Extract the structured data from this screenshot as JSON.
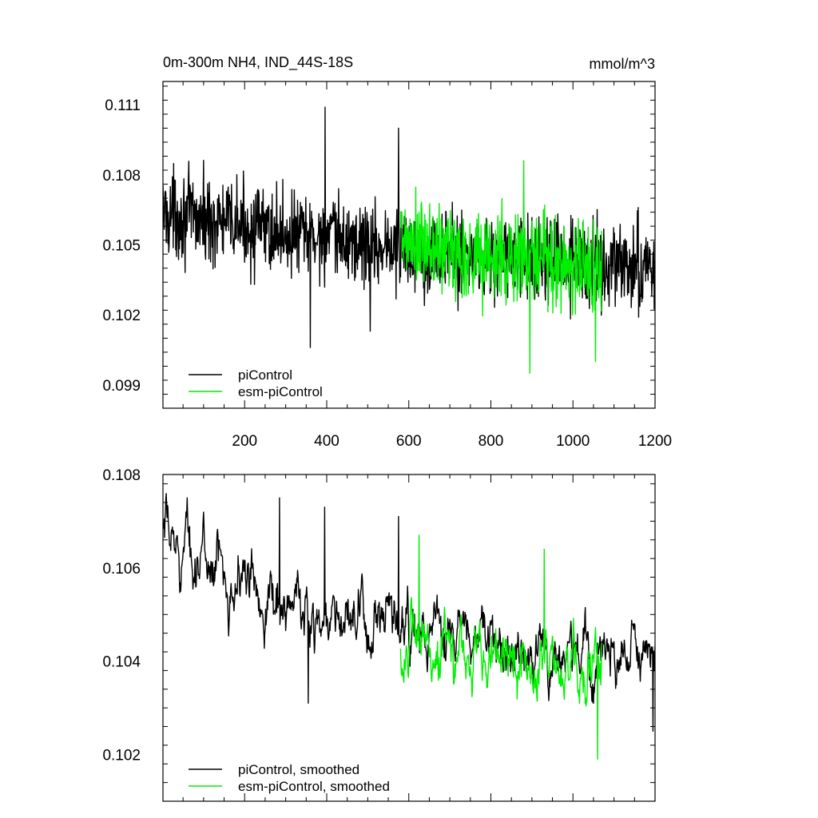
{
  "chart_data": [
    {
      "type": "line",
      "title": "0m-300m NH4, IND_44S-18S",
      "units": "mmol/m^3",
      "xlim": [
        1,
        1200
      ],
      "ylim": [
        0.098,
        0.112
      ],
      "xticks": [
        200,
        400,
        600,
        800,
        1000,
        1200
      ],
      "xtick_labels": [
        "200",
        "400",
        "600",
        "800",
        "1000",
        "1200"
      ],
      "yticks": [
        0.099,
        0.102,
        0.105,
        0.108,
        0.111
      ],
      "ytick_labels": [
        "0.099",
        "0.102",
        "0.105",
        "0.108",
        "0.111"
      ],
      "legend_position": "bottom-left",
      "legend": [
        "piControl",
        "esm-piControl"
      ],
      "series": [
        {
          "name": "piControl",
          "color": "#000000",
          "x_start": 1,
          "x_end": 1200,
          "trend": [
            [
              1,
              0.1064
            ],
            [
              300,
              0.1055
            ],
            [
              600,
              0.1048
            ],
            [
              900,
              0.1043
            ],
            [
              1200,
              0.104
            ]
          ],
          "noise": 0.0013,
          "extrema": [
            [
              360,
              0.1006
            ],
            [
              396,
              0.1109
            ],
            [
              506,
              0.1013
            ],
            [
              575,
              0.11
            ],
            [
              1160,
              0.1019
            ]
          ]
        },
        {
          "name": "esm-piControl",
          "color": "#00ee00",
          "x_start": 580,
          "x_end": 1070,
          "trend": [
            [
              580,
              0.105
            ],
            [
              800,
              0.1045
            ],
            [
              1070,
              0.104
            ]
          ],
          "noise": 0.0015,
          "extrema": [
            [
              895,
              0.0995
            ],
            [
              880,
              0.1086
            ],
            [
              1055,
              0.1
            ]
          ]
        }
      ]
    },
    {
      "type": "line",
      "title": "",
      "xlim": [
        1,
        1200
      ],
      "ylim": [
        0.101,
        0.108
      ],
      "xticks": [
        200,
        400,
        600,
        800,
        1000,
        1200
      ],
      "xtick_labels": [],
      "yticks": [
        0.102,
        0.104,
        0.106,
        0.108
      ],
      "ytick_labels": [
        "0.102",
        "0.104",
        "0.106",
        "0.108"
      ],
      "legend_position": "bottom-left",
      "legend": [
        "piControl, smoothed",
        "esm-piControl, smoothed"
      ],
      "series": [
        {
          "name": "piControl, smoothed",
          "color": "#000000",
          "x_start": 1,
          "x_end": 1200,
          "trend": [
            [
              1,
              0.1066
            ],
            [
              100,
              0.1062
            ],
            [
              300,
              0.1052
            ],
            [
              500,
              0.1047
            ],
            [
              700,
              0.1045
            ],
            [
              900,
              0.1042
            ],
            [
              1200,
              0.104
            ]
          ],
          "noise": 0.00065,
          "extrema": [
            [
              60,
              0.1075
            ],
            [
              285,
              0.1075
            ],
            [
              355,
              0.1031
            ],
            [
              395,
              0.1073
            ],
            [
              575,
              0.1071
            ],
            [
              1195,
              0.1025
            ]
          ]
        },
        {
          "name": "esm-piControl, smoothed",
          "color": "#00ee00",
          "x_start": 580,
          "x_end": 1070,
          "trend": [
            [
              580,
              0.1043
            ],
            [
              800,
              0.1041
            ],
            [
              1070,
              0.1038
            ]
          ],
          "noise": 0.0007,
          "extrema": [
            [
              625,
              0.1067
            ],
            [
              930,
              0.1064
            ],
            [
              1060,
              0.1019
            ]
          ]
        }
      ]
    }
  ]
}
